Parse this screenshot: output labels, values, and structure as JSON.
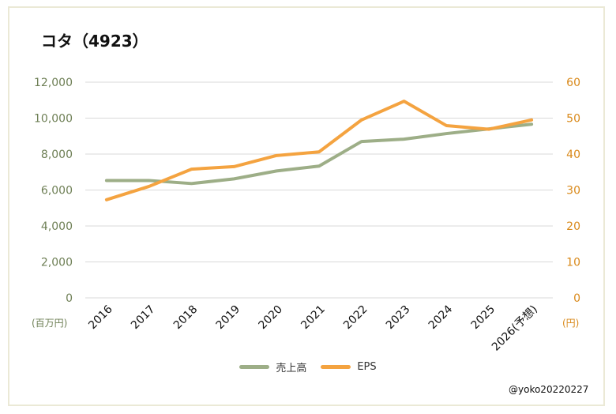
{
  "title": "コタ（4923）",
  "watermark": "@yoko20220227",
  "left_unit": "(百万円)",
  "right_unit": "(円)",
  "chart_data": {
    "type": "line",
    "categories": [
      "2016",
      "2017",
      "2018",
      "2019",
      "2020",
      "2021",
      "2022",
      "2023",
      "2024",
      "2025",
      "2026(予想)"
    ],
    "series": [
      {
        "name": "売上高",
        "axis": "left",
        "color": "#9dae87",
        "values": [
          6530,
          6530,
          6360,
          6620,
          7060,
          7330,
          8700,
          8830,
          9140,
          9400,
          9660
        ]
      },
      {
        "name": "EPS",
        "axis": "right",
        "color": "#f4a340",
        "values": [
          27.3,
          31.0,
          35.8,
          36.5,
          39.6,
          40.6,
          49.5,
          54.7,
          47.9,
          46.9,
          49.5
        ]
      }
    ],
    "y_left": {
      "min": 0,
      "max": 12000,
      "ticks": [
        "0",
        "2,000",
        "4,000",
        "6,000",
        "8,000",
        "10,000",
        "12,000"
      ],
      "color": "#6e7f55"
    },
    "y_right": {
      "min": 0,
      "max": 60,
      "ticks": [
        "0",
        "10",
        "20",
        "30",
        "40",
        "50",
        "60"
      ],
      "color": "#d9891a"
    },
    "grid": true,
    "legend": "bottom-center"
  }
}
